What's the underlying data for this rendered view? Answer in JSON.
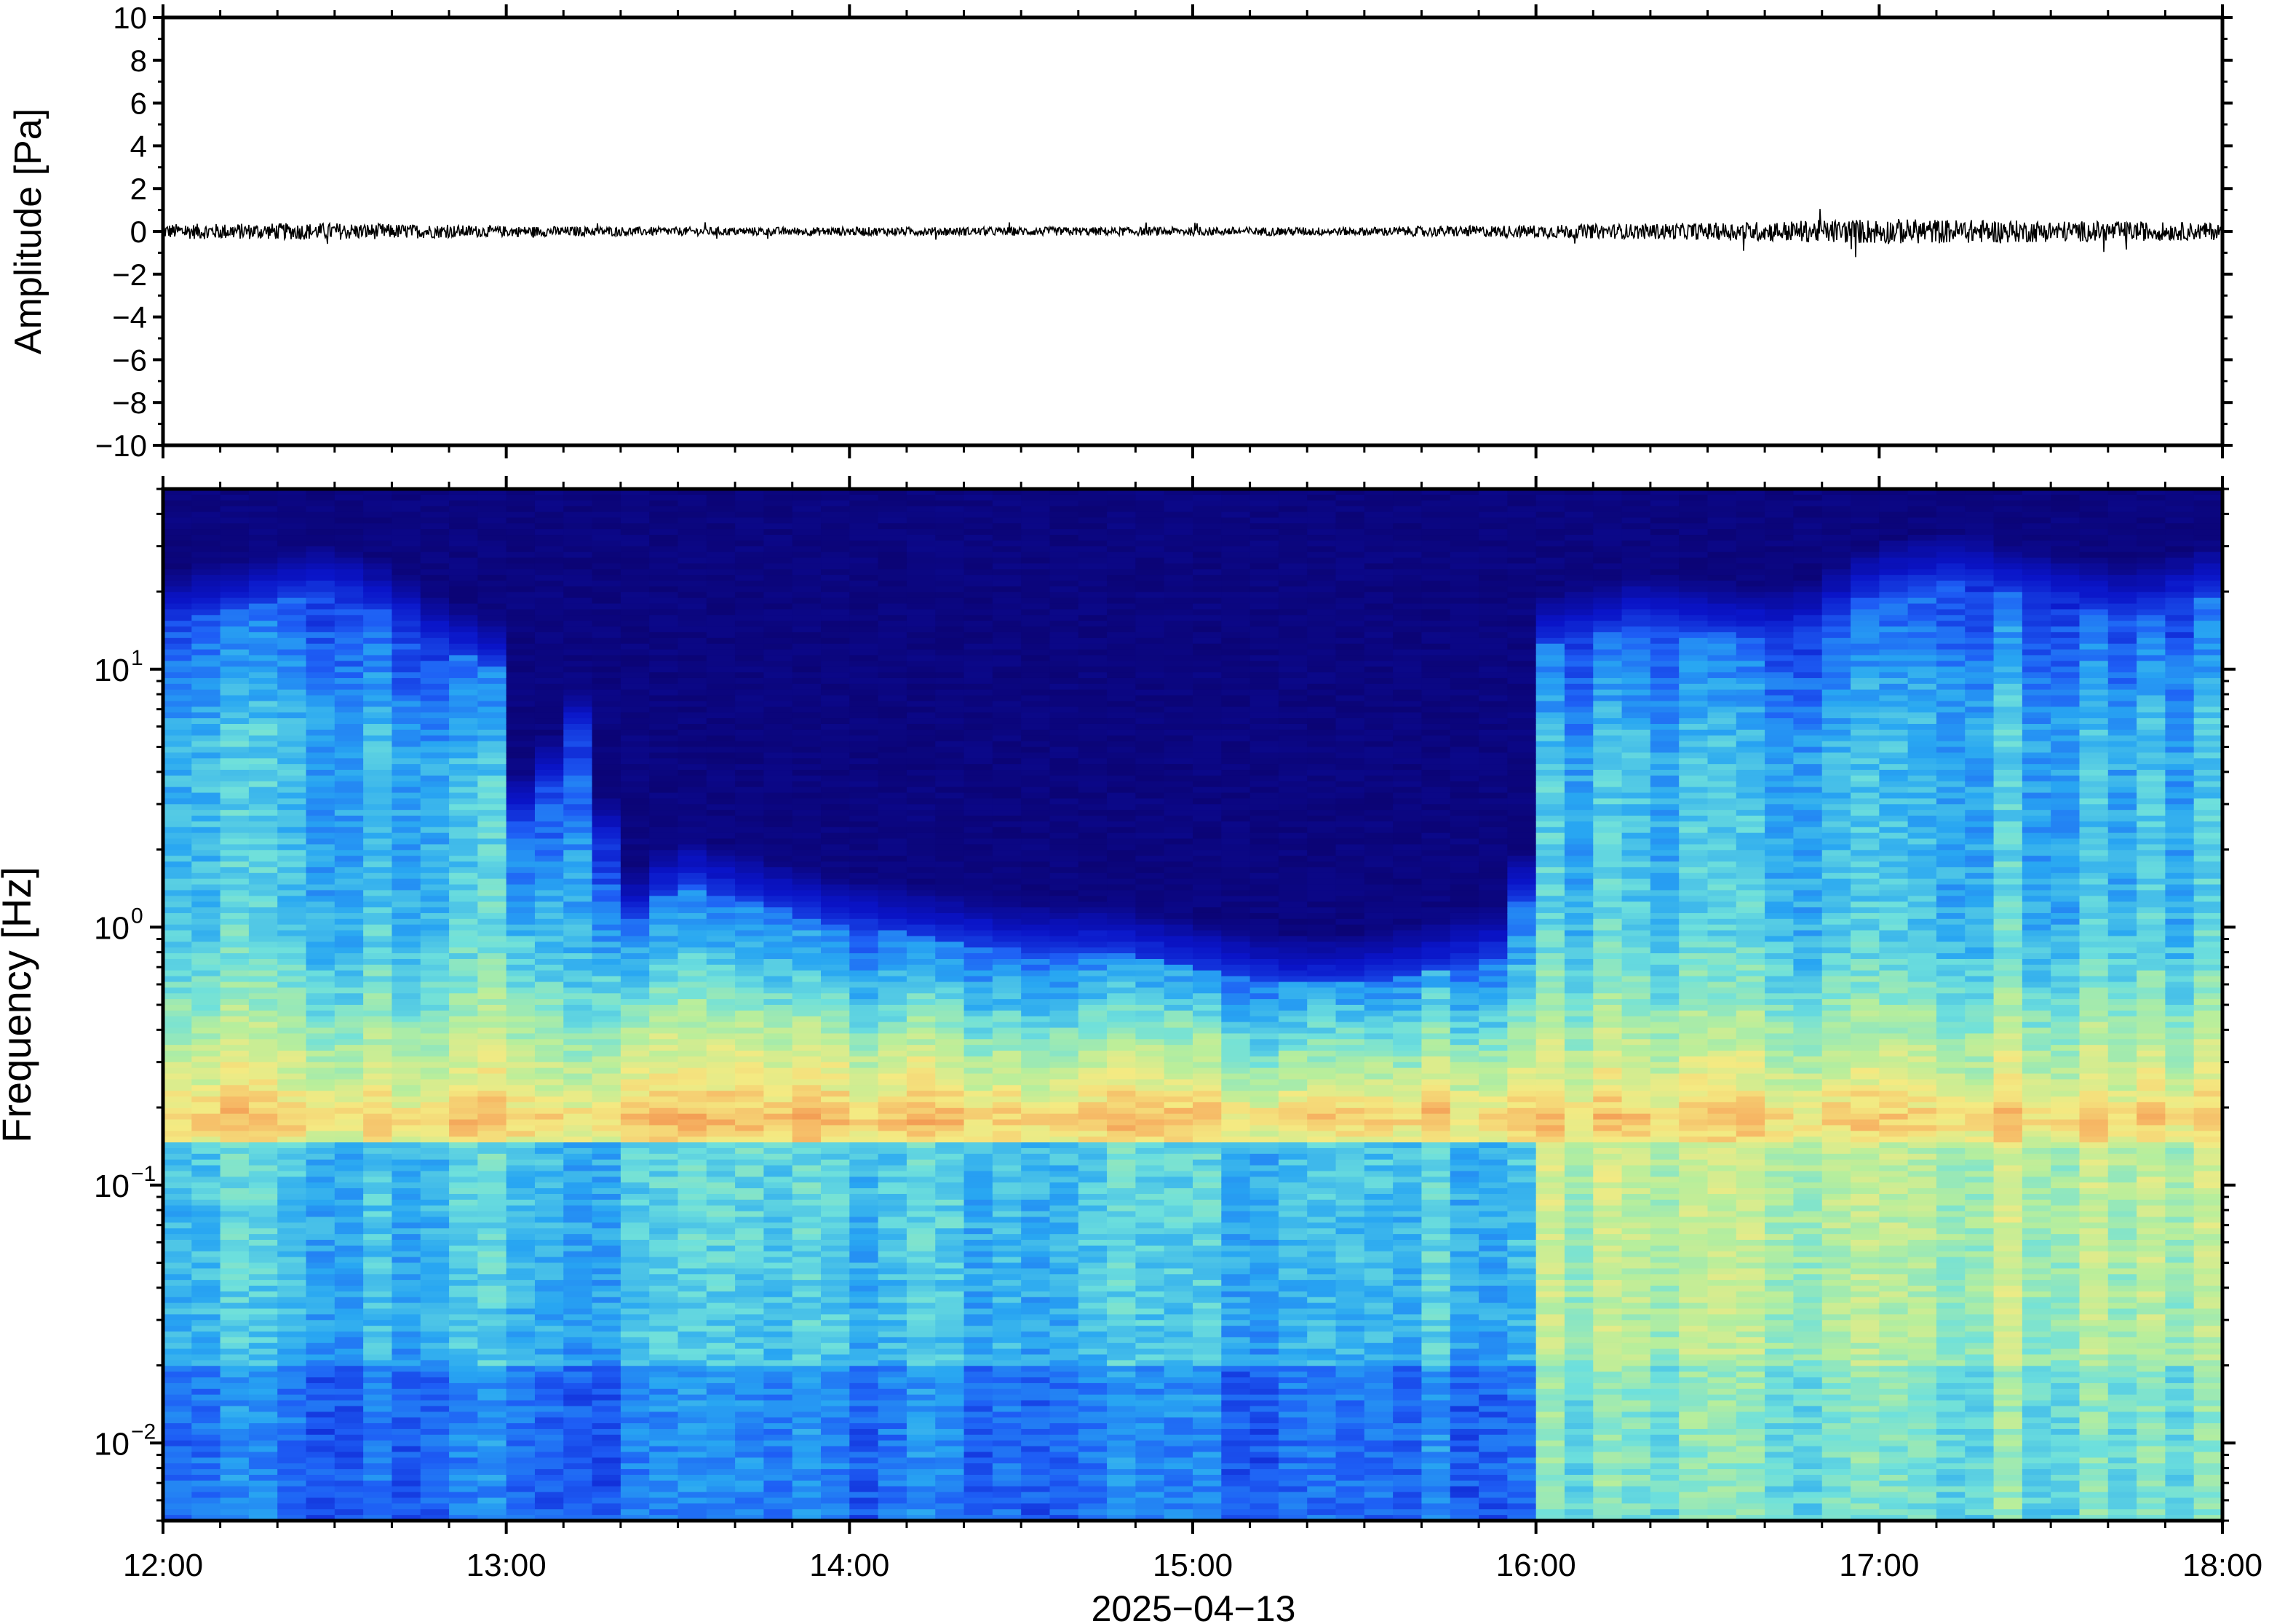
{
  "chart_data": [
    {
      "type": "line",
      "ylabel": "Amplitude [Pa]",
      "ylim": [
        -10,
        10
      ],
      "yticks": [
        10,
        8,
        6,
        4,
        2,
        0,
        -2,
        -4,
        -6,
        -8,
        -10
      ],
      "ytick_labels": [
        "10",
        "8",
        "6",
        "4",
        "2",
        "0",
        "−2",
        "−4",
        "−6",
        "−8",
        "−10"
      ],
      "xlim": [
        "12:00",
        "18:00"
      ],
      "grid": false,
      "series": [
        {
          "color": "#000000",
          "x_hours": [
            12.0,
            12.5,
            13.0,
            13.5,
            14.0,
            14.5,
            15.0,
            15.5,
            16.0,
            16.5,
            17.0,
            17.5,
            18.0
          ],
          "envelope_pa": [
            0.35,
            0.4,
            0.25,
            0.2,
            0.2,
            0.2,
            0.2,
            0.2,
            0.3,
            0.4,
            0.6,
            0.5,
            0.4
          ]
        }
      ]
    },
    {
      "type": "heatmap",
      "ylabel": "Frequency [Hz]",
      "xlabel": "2025−04−13",
      "yscale": "log",
      "ylim": [
        0.005,
        50
      ],
      "yticks": [
        {
          "value": 10,
          "base": "10",
          "exp": "1"
        },
        {
          "value": 1,
          "base": "10",
          "exp": "0"
        },
        {
          "value": 0.1,
          "base": "10",
          "exp": "−1"
        },
        {
          "value": 0.01,
          "base": "10",
          "exp": "−2"
        }
      ],
      "x_tick_labels": [
        "12:00",
        "13:00",
        "14:00",
        "15:00",
        "16:00",
        "17:00",
        "18:00"
      ],
      "x_ticks_hours": [
        12,
        13,
        14,
        15,
        16,
        17,
        18
      ],
      "colormap": "jet",
      "colors": [
        "#0b0475",
        "#0a14c8",
        "#1e5ef5",
        "#28a6f2",
        "#6ee0dc",
        "#b7ee9c",
        "#f4ea82",
        "#f6b463",
        "#ee7b3e"
      ],
      "noise_cutoff_hz_by_time": [
        [
          12.0,
          15
        ],
        [
          12.3,
          18
        ],
        [
          12.5,
          20
        ],
        [
          12.7,
          15
        ],
        [
          12.8,
          12
        ],
        [
          13.0,
          10
        ],
        [
          13.05,
          2
        ],
        [
          13.2,
          6
        ],
        [
          13.35,
          1
        ],
        [
          13.5,
          1.5
        ],
        [
          13.75,
          1.2
        ],
        [
          14.0,
          1.0
        ],
        [
          14.25,
          0.9
        ],
        [
          14.5,
          0.8
        ],
        [
          14.75,
          0.8
        ],
        [
          15.0,
          0.7
        ],
        [
          15.25,
          0.6
        ],
        [
          15.5,
          0.6
        ],
        [
          15.75,
          0.7
        ],
        [
          15.95,
          0.8
        ],
        [
          16.0,
          12
        ],
        [
          16.3,
          15
        ],
        [
          16.5,
          14
        ],
        [
          16.75,
          13
        ],
        [
          17.0,
          20
        ],
        [
          17.25,
          22
        ],
        [
          17.5,
          18
        ],
        [
          17.75,
          16
        ],
        [
          18.0,
          20
        ]
      ],
      "microbarom_band_hz": [
        0.15,
        0.23
      ],
      "microbarom_peak_hz": 0.18
    }
  ]
}
